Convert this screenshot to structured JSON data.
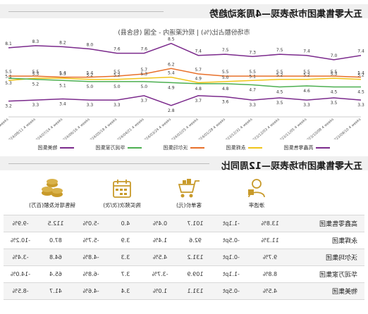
{
  "section1": {
    "title": "五大零售集团市场表现—4周滚动趋势",
    "subtitle": "市场份额占比(%) | 现代渠道内 - 全国 (包含县)"
  },
  "chart_data": {
    "type": "line",
    "x": [
      "2023/09/10 4 weeks",
      "2023/10/08 4 weeks",
      "2023/11/05 4 weeks",
      "2023/12/03 4 weeks",
      "2023/12/31 4 weeks",
      "2024/01/28 4 weeks",
      "2024/02/25 4 weeks",
      "2024/03/24 4 weeks",
      "2024/04/21 4 weeks",
      "2024/05/19 4 weeks",
      "2024/06/16 4 weeks",
      "2024/07/14 4 weeks",
      "2024/08/11 4 weeks",
      "2024/09/08 4 weeks"
    ],
    "series": [
      {
        "name": "高鑫零售集团",
        "color": "#7b2a8c",
        "values": [
          7.4,
          7.0,
          7.4,
          7.5,
          7.3,
          7.5,
          7.4,
          8.5,
          7.6,
          7.6,
          8.0,
          8.2,
          8.3,
          8.1
        ]
      },
      {
        "name": "沃尔玛集团",
        "color": "#e8702a",
        "values": [
          5.4,
          5.5,
          5.5,
          5.5,
          5.5,
          5.5,
          5.7,
          6.2,
          5.7,
          5.5,
          5.4,
          5.4,
          5.5,
          5.5
        ]
      },
      {
        "name": "永辉集团",
        "color": "#f0c419",
        "values": [
          5.2,
          5.3,
          5.2,
          5.2,
          5.1,
          5.0,
          4.9,
          5.4,
          5.3,
          5.2,
          5.2,
          5.3,
          5.3,
          5.1
        ]
      },
      {
        "name": "华润万家集团",
        "color": "#4caf50",
        "values": [
          4.5,
          4.5,
          4.6,
          4.5,
          4.7,
          4.8,
          4.8,
          4.9,
          5.0,
          5.0,
          5.0,
          5.1,
          5.2,
          5.3
        ]
      },
      {
        "name": "物美集团",
        "color": "#7b2a8c",
        "values": [
          3.3,
          3.5,
          3.3,
          3.5,
          3.3,
          3.6,
          3.7,
          2.8,
          3.7,
          3.3,
          3.3,
          3.4,
          3.3,
          3.2
        ]
      }
    ],
    "ylim": [
      2.4,
      9.0
    ]
  },
  "legend": [
    "高鑫零售集团",
    "永辉集团",
    "沃尔玛集团",
    "华润万家集团",
    "物美集团"
  ],
  "section2": {
    "title": "五大零售集团市场表现—12周同比"
  },
  "metrics": [
    {
      "icon": "people-icon",
      "label": "渗透率"
    },
    {
      "icon": "shopping-cart-icon",
      "label": "客单价(元)"
    },
    {
      "icon": "calendar-icon",
      "label": "购买频次(次/次)"
    },
    {
      "icon": "coins-icon",
      "label": "销售增长及额(百万)"
    }
  ],
  "table": [
    {
      "name": "高鑫零售集团",
      "cells": [
        "13.8%",
        "-1.1pt",
        "101.7",
        "0.4%",
        "4.0",
        "-5.0%",
        "112.5",
        "-9.9%"
      ]
    },
    {
      "name": "永辉集团",
      "cells": [
        "11.3%",
        "-0.5pt",
        "92.6",
        "1.4%",
        "3.9",
        "-5.7%",
        "87.0",
        "-10.2%"
      ]
    },
    {
      "name": "沃尔玛集团",
      "cells": [
        "9.7%",
        "-0.1pt",
        "131.2",
        "4.5%",
        "3.3",
        "-4.8%",
        "64.8",
        "-3.4%"
      ]
    },
    {
      "name": "华润万家集团",
      "cells": [
        "8.8%",
        "-1.1pt",
        "109.9",
        "-3.7%",
        "3.7",
        "-6.8%",
        "65.4",
        "-14.0%"
      ]
    },
    {
      "name": "物美集团",
      "cells": [
        "4.5%",
        "-0.5pt",
        "131.1",
        "1.0%",
        "3.4",
        "-4.6%",
        "41.7",
        "-8.5%"
      ]
    }
  ]
}
